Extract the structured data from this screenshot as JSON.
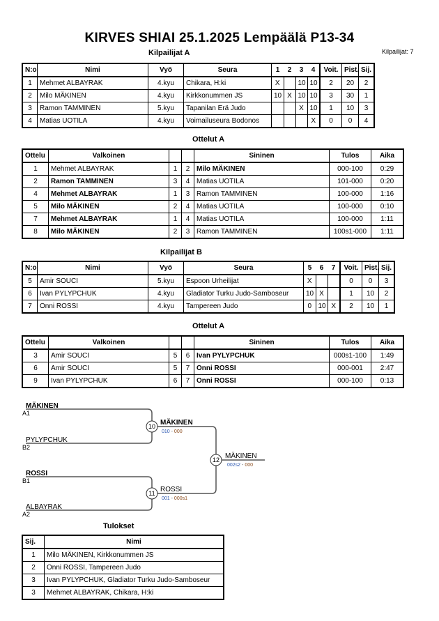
{
  "title": "KIRVES SHIAI  25.1.2025  Lempäälä   P13-34",
  "competitor_count": "Kilpailijat: 7",
  "pool_a": {
    "heading": "Kilpailijat A",
    "headers": [
      "N:o",
      "Nimi",
      "Vyö",
      "Seura",
      "1",
      "2",
      "3",
      "4",
      "Voit.",
      "Pist.",
      "Sij."
    ],
    "rows": [
      [
        "1",
        "Mehmet ALBAYRAK",
        "4.kyu",
        "Chikara, H:ki",
        "X",
        "",
        "10",
        "10",
        "2",
        "20",
        "2"
      ],
      [
        "2",
        "Milo MÄKINEN",
        "4.kyu",
        "Kirkkonummen JS",
        "10",
        "X",
        "10",
        "10",
        "3",
        "30",
        "1"
      ],
      [
        "3",
        "Ramon TAMMINEN",
        "5.kyu",
        "Tapanilan Erä Judo",
        "",
        "",
        "X",
        "10",
        "1",
        "10",
        "3"
      ],
      [
        "4",
        "Matias UOTILA",
        "4.kyu",
        "Voimailuseura Bodonos",
        "",
        "",
        "",
        "X",
        "0",
        "0",
        "4"
      ]
    ]
  },
  "matches_a": {
    "heading": "Ottelut A",
    "headers": [
      "Ottelu",
      "Valkoinen",
      "",
      "",
      "Sininen",
      "Tulos",
      "Aika"
    ],
    "rows": [
      {
        "cells": [
          "1",
          "Mehmet ALBAYRAK",
          "1",
          "2",
          "Milo MÄKINEN",
          "000-100",
          "0:29"
        ],
        "winner": "blue"
      },
      {
        "cells": [
          "2",
          "Ramon TAMMINEN",
          "3",
          "4",
          "Matias UOTILA",
          "101-000",
          "0:20"
        ],
        "winner": "white"
      },
      {
        "cells": [
          "4",
          "Mehmet ALBAYRAK",
          "1",
          "3",
          "Ramon TAMMINEN",
          "100-000",
          "1:16"
        ],
        "winner": "white"
      },
      {
        "cells": [
          "5",
          "Milo MÄKINEN",
          "2",
          "4",
          "Matias UOTILA",
          "100-000",
          "0:10"
        ],
        "winner": "white"
      },
      {
        "cells": [
          "7",
          "Mehmet ALBAYRAK",
          "1",
          "4",
          "Matias UOTILA",
          "100-000",
          "1:11"
        ],
        "winner": "white"
      },
      {
        "cells": [
          "8",
          "Milo MÄKINEN",
          "2",
          "3",
          "Ramon TAMMINEN",
          "100s1-000",
          "1:11"
        ],
        "winner": "white"
      }
    ]
  },
  "pool_b": {
    "heading": "Kilpailijat B",
    "headers": [
      "N:o",
      "Nimi",
      "Vyö",
      "Seura",
      "5",
      "6",
      "7",
      "Voit.",
      "Pist.",
      "Sij."
    ],
    "rows": [
      [
        "5",
        "Amir SOUCI",
        "5.kyu",
        "Espoon Urheilijat",
        "X",
        "",
        "",
        "0",
        "0",
        "3"
      ],
      [
        "6",
        "Ivan PYLYPCHUK",
        "4.kyu",
        "Gladiator Turku Judo-Samboseur",
        "10",
        "X",
        "",
        "1",
        "10",
        "2"
      ],
      [
        "7",
        "Onni ROSSI",
        "4.kyu",
        "Tampereen Judo",
        "0",
        "10",
        "X",
        "2",
        "10",
        "1"
      ]
    ]
  },
  "matches_b": {
    "heading": "Ottelut A",
    "headers": [
      "Ottelu",
      "Valkoinen",
      "",
      "",
      "Sininen",
      "Tulos",
      "Aika"
    ],
    "rows": [
      {
        "cells": [
          "3",
          "Amir SOUCI",
          "5",
          "6",
          "Ivan PYLYPCHUK",
          "000s1-100",
          "1:49"
        ],
        "winner": "blue"
      },
      {
        "cells": [
          "6",
          "Amir SOUCI",
          "5",
          "7",
          "Onni ROSSI",
          "000-001",
          "2:47"
        ],
        "winner": "blue"
      },
      {
        "cells": [
          "9",
          "Ivan PYLYPCHUK",
          "6",
          "7",
          "Onni ROSSI",
          "000-100",
          "0:13"
        ],
        "winner": "blue"
      }
    ]
  },
  "bracket": {
    "entries": [
      {
        "name": "MÄKINEN",
        "seed": "A1"
      },
      {
        "name": "PYLYPCHUK",
        "seed": "B2"
      },
      {
        "name": "ROSSI",
        "seed": "B1"
      },
      {
        "name": "ALBAYRAK",
        "seed": "A2"
      }
    ],
    "matches": [
      {
        "number": "10",
        "winner": "MÄKINEN",
        "score_white": "010",
        "score_blue": "000"
      },
      {
        "number": "11",
        "winner": "ROSSI",
        "score_white": "001",
        "score_blue": "000s1"
      },
      {
        "number": "12",
        "winner": "MÄKINEN",
        "score_white": "002s2",
        "score_blue": "000"
      }
    ],
    "score_colors": {
      "white": "#2a56b0",
      "blue": "#8a4a1a"
    }
  },
  "results": {
    "heading": "Tulokset",
    "headers": [
      "Sij.",
      "Nimi"
    ],
    "rows": [
      [
        "1",
        "Milo MÄKINEN, Kirkkonummen JS"
      ],
      [
        "2",
        "Onni ROSSI, Tampereen Judo"
      ],
      [
        "3",
        "Ivan PYLYPCHUK, Gladiator Turku Judo-Samboseur"
      ],
      [
        "3",
        "Mehmet ALBAYRAK, Chikara, H:ki"
      ]
    ]
  }
}
